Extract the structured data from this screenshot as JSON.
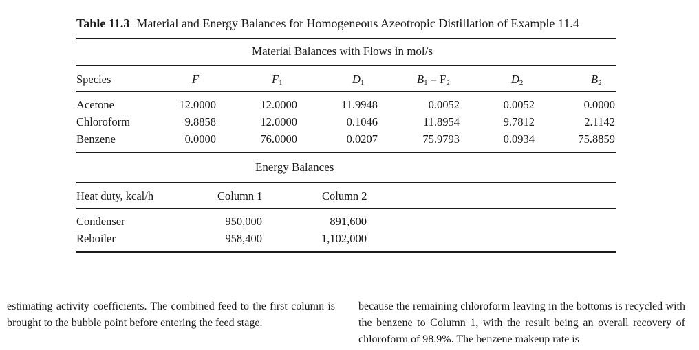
{
  "caption": {
    "label": "Table 11.3",
    "title": "Material and Energy Balances for Homogeneous Azeotropic Distillation of Example 11.4"
  },
  "material": {
    "heading": "Material Balances with Flows in mol/s",
    "columns": [
      {
        "main": "Species",
        "sub": ""
      },
      {
        "main": "F",
        "sub": ""
      },
      {
        "main": "F",
        "sub": "1"
      },
      {
        "main": "D",
        "sub": "1"
      },
      {
        "main": "B",
        "sub": "1",
        "rest": " = F",
        "sub2": "2"
      },
      {
        "main": "D",
        "sub": "2"
      },
      {
        "main": "B",
        "sub": "2"
      }
    ],
    "rows": [
      {
        "species": "Acetone",
        "values": [
          "12.0000",
          "12.0000",
          "11.9948",
          "0.0052",
          "0.0052",
          "0.0000"
        ]
      },
      {
        "species": "Chloroform",
        "values": [
          "9.8858",
          "12.0000",
          "0.1046",
          "11.8954",
          "9.7812",
          "2.1142"
        ]
      },
      {
        "species": "Benzene",
        "values": [
          "0.0000",
          "76.0000",
          "0.0207",
          "75.9793",
          "0.0934",
          "75.8859"
        ]
      }
    ]
  },
  "energy": {
    "heading": "Energy Balances",
    "columns": [
      "Heat duty, kcal/h",
      "Column 1",
      "Column 2"
    ],
    "rows": [
      {
        "label": "Condenser",
        "values": [
          "950,000",
          "891,600"
        ]
      },
      {
        "label": "Reboiler",
        "values": [
          "958,400",
          "1,102,000"
        ]
      }
    ]
  },
  "text": {
    "left": "estimating activity coefficients. The combined feed to the first column is brought to the bubble point before entering the feed stage.",
    "right": "because the remaining chloroform leaving in the bottoms is recycled with the benzene to Column 1, with the result being an overall recovery of chloroform of 98.9%. The benzene makeup rate is"
  }
}
